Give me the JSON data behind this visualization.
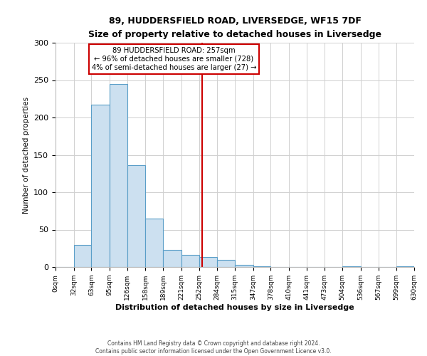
{
  "title": "89, HUDDERSFIELD ROAD, LIVERSEDGE, WF15 7DF",
  "subtitle": "Size of property relative to detached houses in Liversedge",
  "xlabel": "Distribution of detached houses by size in Liversedge",
  "ylabel": "Number of detached properties",
  "bin_edges": [
    0,
    32,
    63,
    95,
    126,
    158,
    189,
    221,
    252,
    284,
    315,
    347,
    378,
    410,
    441,
    473,
    504,
    536,
    567,
    599,
    630
  ],
  "bar_heights": [
    0,
    30,
    217,
    245,
    136,
    65,
    23,
    16,
    13,
    10,
    3,
    1,
    0,
    0,
    0,
    0,
    1,
    0,
    0,
    1
  ],
  "bar_color": "#cce0f0",
  "bar_edge_color": "#5a9ec8",
  "vline_x": 257,
  "vline_color": "#cc0000",
  "ylim": [
    0,
    300
  ],
  "yticks": [
    0,
    50,
    100,
    150,
    200,
    250,
    300
  ],
  "xtick_labels": [
    "0sqm",
    "32sqm",
    "63sqm",
    "95sqm",
    "126sqm",
    "158sqm",
    "189sqm",
    "221sqm",
    "252sqm",
    "284sqm",
    "315sqm",
    "347sqm",
    "378sqm",
    "410sqm",
    "441sqm",
    "473sqm",
    "504sqm",
    "536sqm",
    "567sqm",
    "599sqm",
    "630sqm"
  ],
  "annotation_title": "89 HUDDERSFIELD ROAD: 257sqm",
  "annotation_line1": "← 96% of detached houses are smaller (728)",
  "annotation_line2": "4% of semi-detached houses are larger (27) →",
  "annotation_box_color": "#ffffff",
  "annotation_box_edge_color": "#cc0000",
  "footer1": "Contains HM Land Registry data © Crown copyright and database right 2024.",
  "footer2": "Contains public sector information licensed under the Open Government Licence v3.0.",
  "background_color": "#ffffff",
  "grid_color": "#d0d0d0"
}
